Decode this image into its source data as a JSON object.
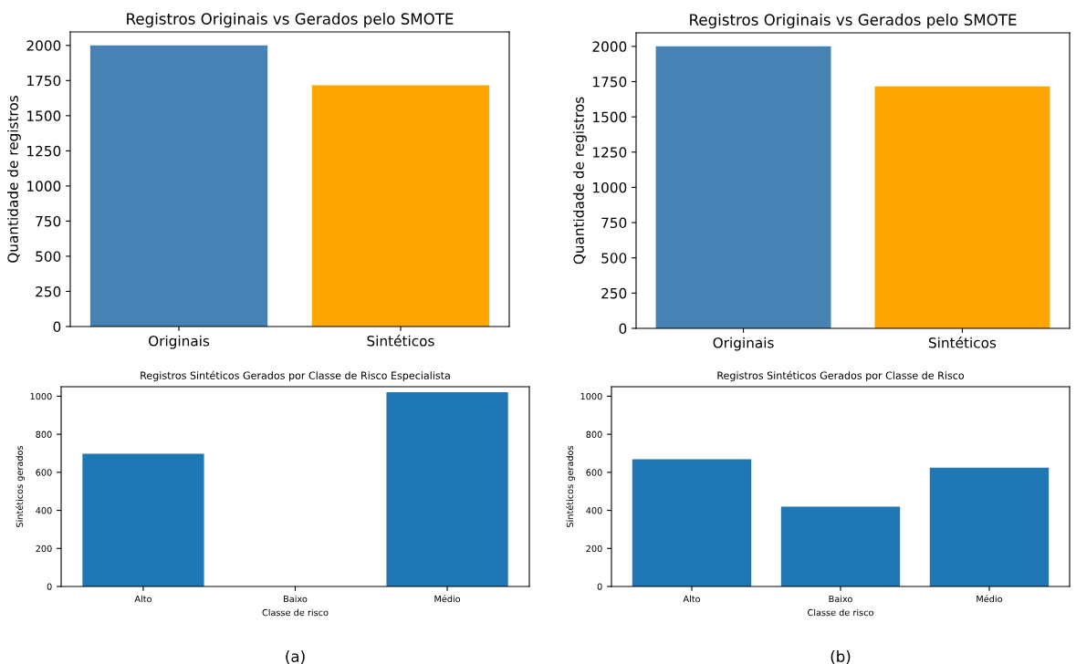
{
  "chart_data": [
    {
      "type": "bar",
      "title": "Registros Originais vs Gerados pelo SMOTE",
      "ylabel": "Quantidade de registros",
      "categories": [
        "Originais",
        "Sintéticos"
      ],
      "values": [
        2000,
        1716
      ],
      "colors": [
        "#4682b4",
        "#ffa500"
      ],
      "ylim": [
        0,
        2096
      ],
      "yticks": [
        0,
        250,
        500,
        750,
        1000,
        1250,
        1500,
        1750,
        2000
      ],
      "grid": false
    },
    {
      "type": "bar",
      "title": "Registros Originais vs Gerados pelo SMOTE",
      "ylabel": "Quantidade de registros",
      "categories": [
        "Originais",
        "Sintéticos"
      ],
      "values": [
        2000,
        1716
      ],
      "colors": [
        "#4682b4",
        "#ffa500"
      ],
      "ylim": [
        0,
        2096
      ],
      "yticks": [
        0,
        250,
        500,
        750,
        1000,
        1250,
        1500,
        1750,
        2000
      ],
      "grid": false
    },
    {
      "type": "bar",
      "title": "Registros Sintéticos Gerados por Classe de Risco Especialista",
      "xlabel": "Classe de risco",
      "ylabel": "Sintéticos gerados",
      "categories": [
        "Alto",
        "Baixo",
        "Médio"
      ],
      "values": [
        698,
        0,
        1021
      ],
      "color": "#1f77b4",
      "ylim": [
        0,
        1050
      ],
      "yticks": [
        0,
        200,
        400,
        600,
        800,
        1000
      ],
      "grid": false,
      "annotations": [
        "(a)"
      ]
    },
    {
      "type": "bar",
      "title": "Registros Sintéticos Gerados por Classe de Risco",
      "xlabel": "Classe de risco",
      "ylabel": "Sintéticos gerados",
      "categories": [
        "Alto",
        "Baixo",
        "Médio"
      ],
      "values": [
        669,
        419,
        624
      ],
      "color": "#1f77b4",
      "ylim": [
        0,
        1050
      ],
      "yticks": [
        0,
        200,
        400,
        600,
        800,
        1000
      ],
      "grid": false,
      "annotations": [
        "(b)"
      ]
    }
  ]
}
